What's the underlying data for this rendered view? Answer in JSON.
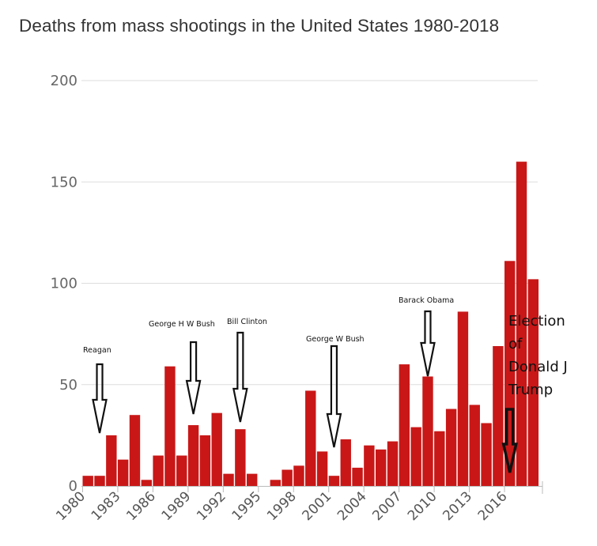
{
  "chart_data": {
    "type": "bar",
    "title": "Deaths from mass shootings in the United States 1980-2018",
    "xlabel": "",
    "ylabel": "",
    "ylim": [
      0,
      200
    ],
    "yticks": [
      0,
      50,
      100,
      150,
      200
    ],
    "x": [
      1980,
      1981,
      1982,
      1983,
      1984,
      1985,
      1986,
      1987,
      1988,
      1989,
      1990,
      1991,
      1992,
      1993,
      1994,
      1995,
      1996,
      1997,
      1998,
      1999,
      2000,
      2001,
      2002,
      2003,
      2004,
      2005,
      2006,
      2007,
      2008,
      2009,
      2010,
      2011,
      2012,
      2013,
      2014,
      2015,
      2016,
      2017,
      2018
    ],
    "values": [
      5,
      5,
      25,
      13,
      35,
      3,
      15,
      59,
      15,
      30,
      25,
      36,
      6,
      28,
      6,
      0,
      3,
      8,
      10,
      47,
      17,
      5,
      23,
      9,
      20,
      18,
      22,
      60,
      29,
      54,
      27,
      38,
      86,
      40,
      31,
      69,
      111,
      160,
      102
    ],
    "xticks": [
      "1980",
      "1983",
      "1986",
      "1989",
      "1992",
      "1995",
      "1998",
      "2001",
      "2004",
      "2007",
      "2010",
      "2013",
      "2016"
    ],
    "grid": true,
    "bar_color": "#c91717",
    "annotations": [
      {
        "text": "Reagan",
        "year": 1981
      },
      {
        "text": "George H W Bush",
        "year": 1989
      },
      {
        "text": "Bill Clinton",
        "year": 1993
      },
      {
        "text": "George W Bush",
        "year": 2001
      },
      {
        "text": "Barack Obama",
        "year": 2009
      },
      {
        "text": [
          "Election",
          "of",
          "Donald J",
          "Trump"
        ],
        "year": 2016
      }
    ]
  }
}
